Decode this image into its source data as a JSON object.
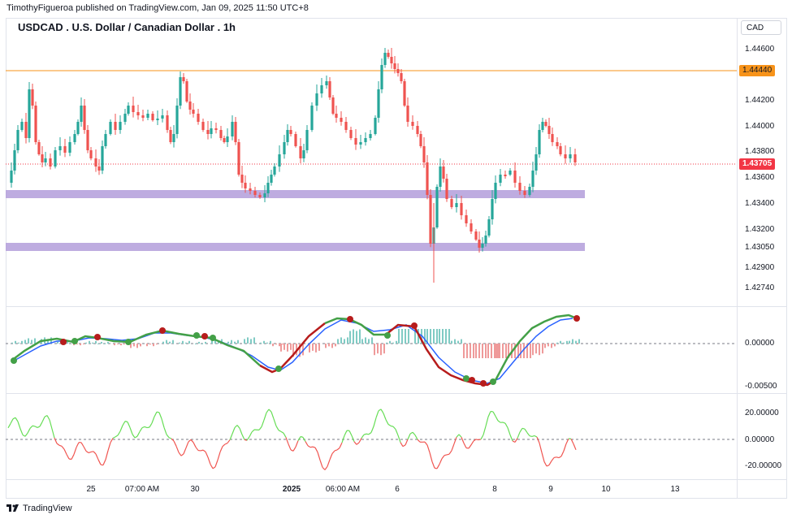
{
  "publisher": "TimothyFigueroa published on TradingView.com, Jan 09, 2025 11:50 UTC+8",
  "symbol_title": "USDCAD . U.S. Dollar / Canadian Dollar . 1h",
  "currency_button": "CAD",
  "price_axis": {
    "labels": [
      "1.44600",
      "1.44200",
      "1.44000",
      "1.43800",
      "1.43600",
      "1.43400",
      "1.43200",
      "1.43050",
      "1.42900",
      "1.42740"
    ],
    "horizontal_line_tag": "1.44440",
    "current_price_tag": "1.43705"
  },
  "indicator1_axis": {
    "labels": [
      "0.00000",
      "-0.00500"
    ]
  },
  "indicator2_axis": {
    "labels": [
      "20.00000",
      "0.00000",
      "-20.00000"
    ]
  },
  "time_axis": [
    {
      "label": "25",
      "bold": false
    },
    {
      "label": "07:00 AM",
      "bold": false
    },
    {
      "label": "30",
      "bold": false
    },
    {
      "label": "2025",
      "bold": true
    },
    {
      "label": "06:00 AM",
      "bold": false
    },
    {
      "label": "6",
      "bold": false
    },
    {
      "label": "8",
      "bold": false
    },
    {
      "label": "9",
      "bold": false
    },
    {
      "label": "10",
      "bold": false
    },
    {
      "label": "13",
      "bold": false
    }
  ],
  "colors": {
    "up": "#26a69a",
    "down": "#ef5350",
    "resistance_line": "#f7931a",
    "zone": "#b39ddb",
    "current_price": "#f23645",
    "osc_fast": "#43a047",
    "osc_fast_down": "#b71c1c",
    "osc_slow": "#2962ff",
    "rsi_up": "#66dd55",
    "rsi_down": "#f05550"
  },
  "logo_text": "TradingView"
}
